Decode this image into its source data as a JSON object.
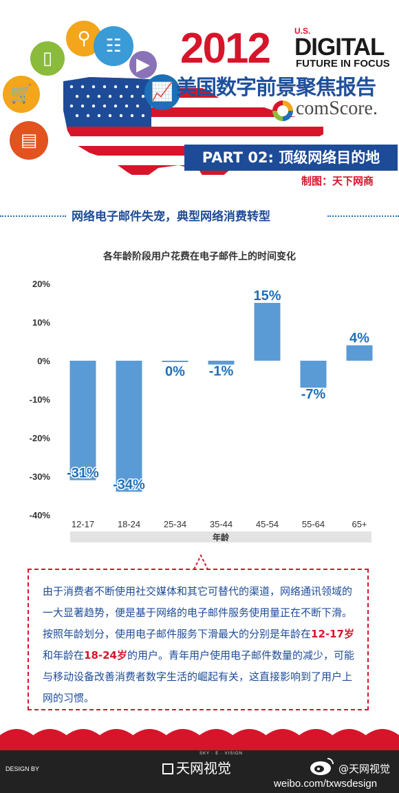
{
  "header": {
    "year": "2012",
    "us_label": "U.S.",
    "digital": "DIGITAL",
    "future": "FUTURE IN FOCUS",
    "subtitle": "美国数字前景聚焦报告",
    "comscore": "comScore.",
    "part": "PART 02: 顶级网络目的地",
    "credit": "制图：天下网商"
  },
  "section_title": "网络电子邮件失宠，典型网络消费转型",
  "icons": [
    "cart-icon",
    "mobile-phone-icon",
    "search-icon",
    "myspace-icon",
    "play-icon",
    "chart-icon",
    "browser-window-icon"
  ],
  "chart_data": {
    "type": "bar",
    "title": "各年龄阶段用户花费在电子邮件上的时间变化",
    "xlabel": "年龄",
    "ylabel": "",
    "categories": [
      "12-17",
      "18-24",
      "25-34",
      "35-44",
      "45-54",
      "55-64",
      "65+"
    ],
    "values": [
      -31,
      -34,
      0,
      -1,
      15,
      -7,
      4
    ],
    "value_labels": [
      "-31%",
      "-34%",
      "0%",
      "-1%",
      "15%",
      "-7%",
      "4%"
    ],
    "yticks": [
      "20%",
      "10%",
      "0%",
      "-10%",
      "-20%",
      "-30%",
      "-40%"
    ],
    "ytick_values": [
      20,
      10,
      0,
      -10,
      -20,
      -30,
      -40
    ],
    "ylim": [
      -40,
      20
    ],
    "bar_color": "#5b9bd5",
    "label_color": "#1f6fb8",
    "grid": false
  },
  "note": {
    "text_1": "由于消费者不断使用社交媒体和其它可替代的渠道，网络通讯领域的一大显著趋势，便是基于网络的电子邮件服务使用量正在不断下滑。按照年龄划分，使用电子邮件服务下滑最大的分别是年龄在",
    "highlight_1": "12-17岁",
    "text_2": "和年龄在",
    "highlight_2": "18-24岁",
    "text_3": "的用户。青年用户使用电子邮件数量的减少，可能与移动设备改善消费者数字生活的崛起有关，这直接影响到了用户上网的习惯。"
  },
  "footer": {
    "design_by": "DESIGN BY",
    "brand_small": "SKY · E · VISION",
    "brand": "天网视觉",
    "weibo_handle": "@天网视觉",
    "weibo_url": "weibo.com/txwsdesign"
  },
  "colors": {
    "red": "#d7152a",
    "blue": "#1d4b97",
    "bar": "#5b9bd5"
  }
}
